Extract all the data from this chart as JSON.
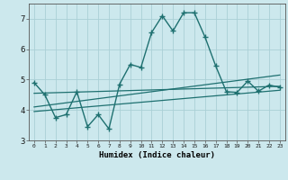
{
  "title": "",
  "xlabel": "Humidex (Indice chaleur)",
  "ylabel": "",
  "background_color": "#cce8ed",
  "grid_color": "#aacfd6",
  "line_color": "#1e7070",
  "xlim": [
    -0.5,
    23.5
  ],
  "ylim": [
    3.0,
    7.5
  ],
  "yticks": [
    3,
    4,
    5,
    6,
    7
  ],
  "xticks": [
    0,
    1,
    2,
    3,
    4,
    5,
    6,
    7,
    8,
    9,
    10,
    11,
    12,
    13,
    14,
    15,
    16,
    17,
    18,
    19,
    20,
    21,
    22,
    23
  ],
  "main_x": [
    0,
    1,
    2,
    3,
    4,
    5,
    6,
    7,
    8,
    9,
    10,
    11,
    12,
    13,
    14,
    15,
    16,
    17,
    18,
    19,
    20,
    21,
    22,
    23
  ],
  "main_y": [
    4.9,
    4.5,
    3.75,
    3.85,
    4.6,
    3.45,
    3.85,
    3.38,
    4.85,
    5.5,
    5.4,
    6.55,
    7.1,
    6.6,
    7.2,
    7.2,
    6.4,
    5.45,
    4.6,
    4.58,
    4.95,
    4.62,
    4.82,
    4.75
  ],
  "trend1_x": [
    0,
    23
  ],
  "trend1_y": [
    4.55,
    4.78
  ],
  "trend2_x": [
    0,
    23
  ],
  "trend2_y": [
    4.1,
    5.15
  ],
  "trend3_x": [
    0,
    23
  ],
  "trend3_y": [
    3.95,
    4.65
  ]
}
